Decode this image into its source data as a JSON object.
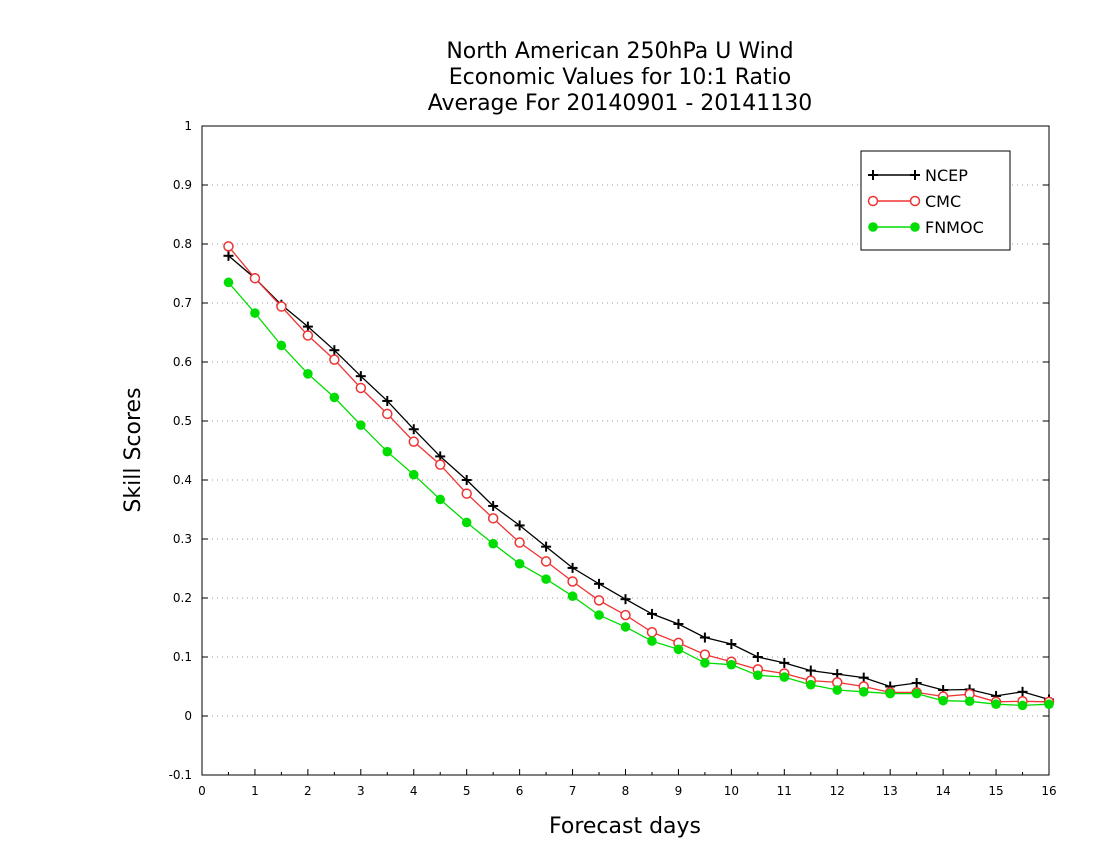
{
  "chart_data": {
    "type": "line",
    "title_lines": [
      "North American 250hPa U Wind",
      "Economic Values for 10:1 Ratio",
      "Average For 20140901 - 20141130"
    ],
    "xlabel": "Forecast days",
    "ylabel": "Skill Scores",
    "xlim": [
      0,
      16
    ],
    "ylim": [
      -0.1,
      1
    ],
    "xticks": [
      0,
      1,
      2,
      3,
      4,
      5,
      6,
      7,
      8,
      9,
      10,
      11,
      12,
      13,
      14,
      15,
      16
    ],
    "xtick_labels": [
      "0",
      "1",
      "2",
      "3",
      "4",
      "5",
      "6",
      "7",
      "8",
      "9",
      "10",
      "11",
      "12",
      "13",
      "14",
      "15",
      "16"
    ],
    "yticks": [
      -0.1,
      0,
      0.1,
      0.2,
      0.3,
      0.4,
      0.5,
      0.6,
      0.7,
      0.8,
      0.9,
      1
    ],
    "ytick_labels": [
      "-0.1",
      "0",
      "0.1",
      "0.2",
      "0.3",
      "0.4",
      "0.5",
      "0.6",
      "0.7",
      "0.8",
      "0.9",
      "1"
    ],
    "grid": "horizontal-dotted",
    "legend_position": "top-right",
    "x": [
      0.5,
      1,
      1.5,
      2,
      2.5,
      3,
      3.5,
      4,
      4.5,
      5,
      5.5,
      6,
      6.5,
      7,
      7.5,
      8,
      8.5,
      9,
      9.5,
      10,
      10.5,
      11,
      11.5,
      12,
      12.5,
      13,
      13.5,
      14,
      14.5,
      15,
      15.5,
      16
    ],
    "series": [
      {
        "name": "NCEP",
        "color": "#000000",
        "marker": "plus",
        "values": [
          0.78,
          0.742,
          0.697,
          0.66,
          0.62,
          0.576,
          0.534,
          0.486,
          0.44,
          0.4,
          0.356,
          0.323,
          0.287,
          0.251,
          0.224,
          0.198,
          0.173,
          0.156,
          0.133,
          0.122,
          0.1,
          0.09,
          0.077,
          0.071,
          0.065,
          0.05,
          0.056,
          0.044,
          0.045,
          0.034,
          0.041,
          0.028
        ]
      },
      {
        "name": "CMC",
        "color": "#ee3333",
        "marker": "open-circle",
        "values": [
          0.796,
          0.742,
          0.694,
          0.645,
          0.604,
          0.556,
          0.512,
          0.465,
          0.426,
          0.377,
          0.335,
          0.294,
          0.262,
          0.228,
          0.196,
          0.171,
          0.142,
          0.124,
          0.104,
          0.092,
          0.079,
          0.072,
          0.06,
          0.057,
          0.05,
          0.04,
          0.04,
          0.033,
          0.037,
          0.024,
          0.025,
          0.024
        ]
      },
      {
        "name": "FNMOC",
        "color": "#00dd00",
        "marker": "filled-circle",
        "values": [
          0.735,
          0.683,
          0.628,
          0.58,
          0.54,
          0.493,
          0.448,
          0.409,
          0.367,
          0.328,
          0.292,
          0.258,
          0.232,
          0.203,
          0.171,
          0.151,
          0.127,
          0.113,
          0.09,
          0.087,
          0.069,
          0.066,
          0.053,
          0.044,
          0.041,
          0.038,
          0.038,
          0.026,
          0.025,
          0.02,
          0.018,
          0.02
        ]
      }
    ]
  }
}
